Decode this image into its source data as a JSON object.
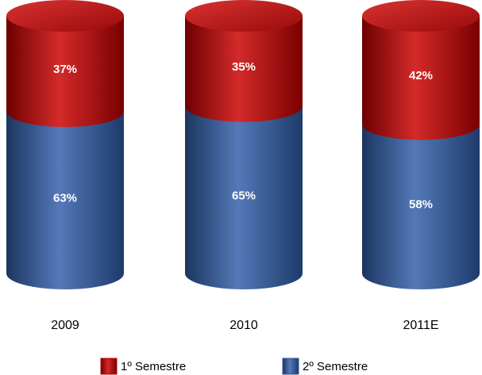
{
  "chart_data": {
    "type": "bar",
    "stacked": true,
    "categories": [
      "2009",
      "2010",
      "2011E"
    ],
    "series": [
      {
        "name": "1º Semestre",
        "color": "#c00000",
        "values": [
          37,
          35,
          42
        ],
        "value_labels": [
          "37%",
          "35%",
          "42%"
        ]
      },
      {
        "name": "2º Semestre",
        "color": "#2f5597",
        "values": [
          63,
          65,
          58
        ],
        "value_labels": [
          "63%",
          "65%",
          "58%"
        ]
      }
    ]
  }
}
